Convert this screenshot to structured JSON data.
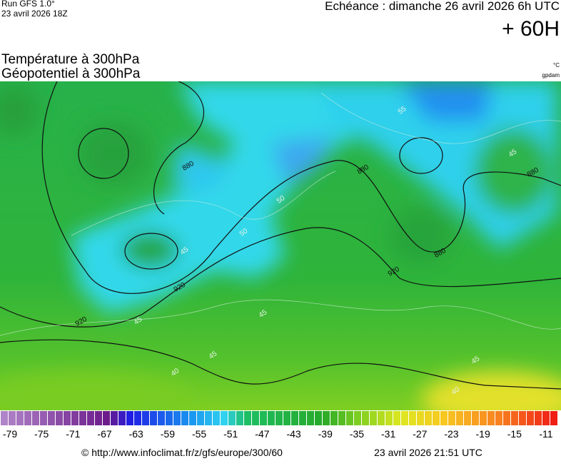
{
  "header": {
    "run": "Run GFS 1.0°",
    "run_date": "23 avril 2026 18Z",
    "echeance": "Echéance : dimanche 26 avril 2026 6h UTC",
    "lead": "+ 60H"
  },
  "titles": {
    "line1": "Température à 300hPa",
    "line2": "Géopotentiel à 300hPa",
    "unit1": "°C",
    "unit2": "gpdam"
  },
  "map": {
    "geopotential_labels": [
      "880",
      "880",
      "880",
      "880",
      "920",
      "920",
      "920"
    ],
    "temperature_labels": [
      "50",
      "55",
      "45",
      "45",
      "45",
      "40",
      "45",
      "40",
      "45",
      "45",
      "50"
    ]
  },
  "colorbar": {
    "labels": [
      -79,
      -75,
      -71,
      -67,
      -63,
      -59,
      -55,
      -51,
      -47,
      -43,
      -39,
      -35,
      -31,
      -27,
      -23,
      -19,
      -15,
      -11
    ]
  },
  "footer": {
    "url": "© http://www.infoclimat.fr/z/gfs/europe/300/60",
    "generated": "23 avril 2026 21:51 UTC"
  }
}
